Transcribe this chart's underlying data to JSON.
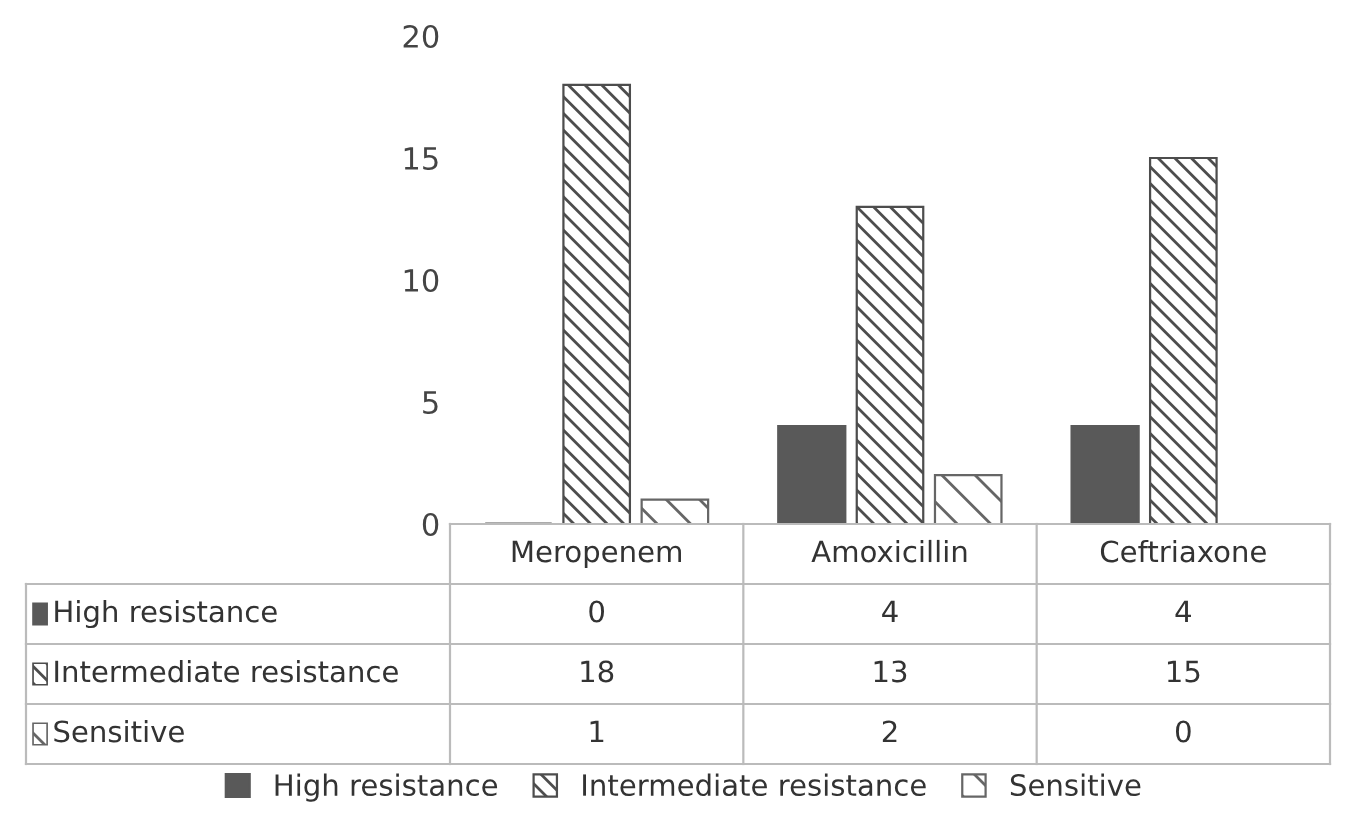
{
  "chart_data": {
    "type": "bar",
    "categories": [
      "Meropenem",
      "Amoxicillin",
      "Ceftriaxone"
    ],
    "series": [
      {
        "name": "High resistance",
        "color": "#595959",
        "values": [
          0,
          4,
          4
        ]
      },
      {
        "name": "Intermediate resistance",
        "color": "#4d4d4d",
        "values": [
          18,
          13,
          15
        ]
      },
      {
        "name": "Sensitive",
        "color": "#666666",
        "values": [
          1,
          2,
          0
        ]
      }
    ],
    "ylim": [
      0,
      20
    ],
    "yticks": [
      0,
      5,
      10,
      15,
      20
    ],
    "grid": false,
    "legend": "bottom",
    "data_labels": true
  }
}
